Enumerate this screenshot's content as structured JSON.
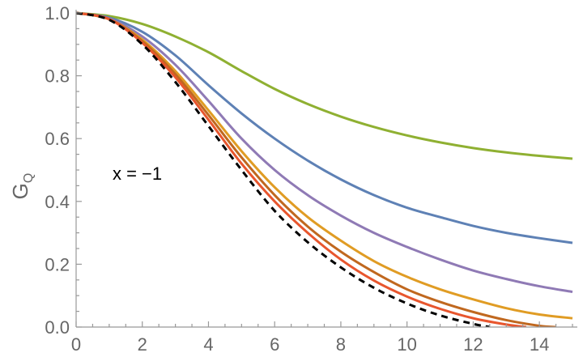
{
  "chart_data": {
    "type": "line",
    "title": "",
    "xlabel": "",
    "ylabel": {
      "main": "G",
      "sub": "Q"
    },
    "xlim": [
      0,
      15
    ],
    "ylim": [
      0,
      1.0
    ],
    "xticks": [
      0,
      2,
      4,
      6,
      8,
      10,
      12,
      14
    ],
    "yticks": [
      0.0,
      0.2,
      0.4,
      0.6,
      0.8,
      1.0
    ],
    "xtick_labels": [
      "0",
      "2",
      "4",
      "6",
      "8",
      "10",
      "12",
      "14"
    ],
    "ytick_labels": [
      "0.0",
      "0.2",
      "0.4",
      "0.6",
      "0.8",
      "1.0"
    ],
    "grid": false,
    "annotation": {
      "text": "x = −1",
      "x": 1.1,
      "y": 0.49
    },
    "series": [
      {
        "color": "#8fb032",
        "dash": "none",
        "x": [
          0,
          1,
          2,
          3,
          4,
          5,
          6,
          7,
          8,
          9,
          10,
          11,
          12,
          13,
          14,
          15
        ],
        "y": [
          1.0,
          0.99,
          0.965,
          0.925,
          0.875,
          0.815,
          0.758,
          0.71,
          0.67,
          0.637,
          0.61,
          0.588,
          0.57,
          0.556,
          0.545,
          0.536
        ]
      },
      {
        "color": "#5e81b5",
        "dash": "none",
        "x": [
          0,
          1,
          2,
          3,
          4,
          5,
          6,
          7,
          8,
          9,
          10,
          11,
          12,
          13,
          14,
          15
        ],
        "y": [
          1.0,
          0.985,
          0.94,
          0.865,
          0.77,
          0.68,
          0.6,
          0.53,
          0.47,
          0.42,
          0.38,
          0.35,
          0.322,
          0.3,
          0.283,
          0.268
        ]
      },
      {
        "color": "#8f7ab5",
        "dash": "none",
        "x": [
          0,
          1,
          2,
          3,
          4,
          5,
          6,
          7,
          8,
          9,
          10,
          11,
          12,
          13,
          14,
          15
        ],
        "y": [
          1.0,
          0.982,
          0.925,
          0.835,
          0.72,
          0.6,
          0.5,
          0.42,
          0.355,
          0.3,
          0.255,
          0.215,
          0.18,
          0.153,
          0.13,
          0.112
        ]
      },
      {
        "color": "#e09c24",
        "dash": "none",
        "x": [
          0,
          1,
          2,
          3,
          4,
          5,
          6,
          7,
          8,
          9,
          10,
          11,
          12,
          13,
          14,
          15
        ],
        "y": [
          1.0,
          0.98,
          0.915,
          0.815,
          0.69,
          0.56,
          0.445,
          0.35,
          0.275,
          0.21,
          0.16,
          0.12,
          0.088,
          0.06,
          0.04,
          0.028
        ]
      },
      {
        "color": "#c0681f",
        "dash": "none",
        "x": [
          0,
          1,
          2,
          3,
          4,
          5,
          6,
          7,
          8,
          9,
          10,
          11,
          12,
          13,
          14,
          14.5
        ],
        "y": [
          1.0,
          0.98,
          0.91,
          0.805,
          0.675,
          0.54,
          0.42,
          0.32,
          0.24,
          0.175,
          0.12,
          0.08,
          0.048,
          0.022,
          0.004,
          0.0
        ]
      },
      {
        "color": "#e8562e",
        "dash": "none",
        "x": [
          0,
          1,
          2,
          3,
          4,
          5,
          6,
          7,
          8,
          9,
          10,
          11,
          12,
          13,
          13.6
        ],
        "y": [
          1.0,
          0.98,
          0.905,
          0.795,
          0.66,
          0.52,
          0.4,
          0.3,
          0.215,
          0.148,
          0.097,
          0.058,
          0.028,
          0.008,
          0.0
        ]
      },
      {
        "color": "#000000",
        "dash": "8,6",
        "x": [
          0,
          1,
          2,
          3,
          4,
          5,
          6,
          7,
          8,
          9,
          10,
          11,
          12,
          12.5
        ],
        "y": [
          1.0,
          0.978,
          0.9,
          0.78,
          0.64,
          0.5,
          0.37,
          0.27,
          0.19,
          0.125,
          0.075,
          0.037,
          0.01,
          0.0
        ]
      }
    ]
  }
}
